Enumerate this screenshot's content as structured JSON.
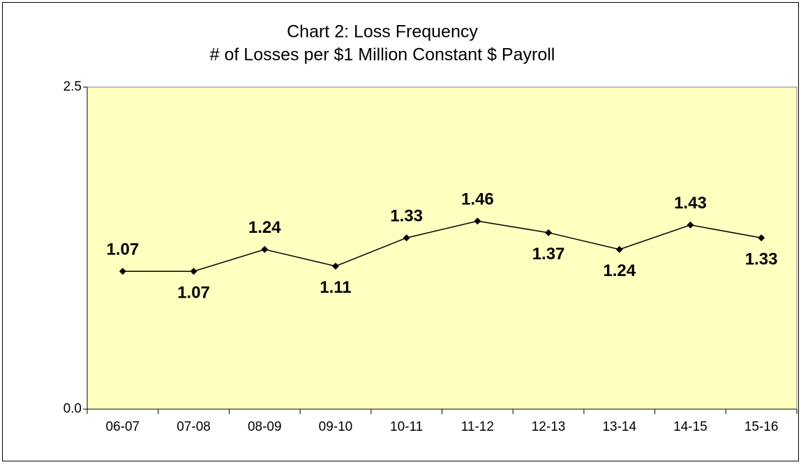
{
  "chart_data": {
    "type": "line",
    "title": [
      "Chart 2:  Loss Frequency",
      "# of Losses per $1 Million Constant $ Payroll"
    ],
    "categories": [
      "06-07",
      "07-08",
      "08-09",
      "09-10",
      "10-11",
      "11-12",
      "12-13",
      "13-14",
      "14-15",
      "15-16"
    ],
    "values": [
      1.07,
      1.07,
      1.24,
      1.11,
      1.33,
      1.46,
      1.37,
      1.24,
      1.43,
      1.33
    ],
    "color": "#000000",
    "plot_background": "#ffffc0",
    "ylim": [
      0,
      2.5
    ],
    "yticks": [
      {
        "value": 0,
        "label": "0.0"
      },
      2.5
    ],
    "grid": false
  }
}
